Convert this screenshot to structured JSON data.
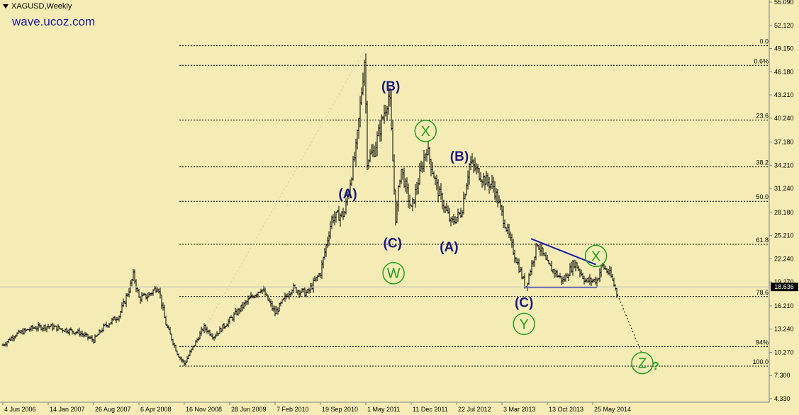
{
  "chart_data": {
    "type": "line",
    "symbol": "XAGUSD,Weekly",
    "watermark": "wave.ucoz.com",
    "x_ticks": [
      "4 Jun 2006",
      "14 Jan 2007",
      "26 Aug 2007",
      "6 Apr 2008",
      "16 Nov 2008",
      "28 Jun 2009",
      "7 Feb 2010",
      "19 Sep 2010",
      "1 May 2011",
      "11 Dec 2011",
      "22 Jul 2012",
      "3 Mar 2013",
      "13 Oct 2013",
      "25 May 2014"
    ],
    "y_ticks": [
      "55.090",
      "52.120",
      "49.150",
      "46.180",
      "43.210",
      "40.240",
      "37.180",
      "34.210",
      "31.240",
      "28.180",
      "25.210",
      "22.240",
      "19.270",
      "16.210",
      "13.240",
      "10.270",
      "7.300",
      "4.330"
    ],
    "ylim": [
      4.33,
      55.09
    ],
    "current_price": "18.636",
    "price_series": [
      [
        "2006-06-04",
        11.2
      ],
      [
        "2006-08-01",
        12.5
      ],
      [
        "2006-11-01",
        13.4
      ],
      [
        "2007-01-14",
        13.6
      ],
      [
        "2007-04-01",
        13.2
      ],
      [
        "2007-06-15",
        12.8
      ],
      [
        "2007-08-26",
        11.8
      ],
      [
        "2007-10-15",
        13.5
      ],
      [
        "2007-12-30",
        15.0
      ],
      [
        "2008-02-20",
        18.5
      ],
      [
        "2008-03-10",
        20.2
      ],
      [
        "2008-04-06",
        17.2
      ],
      [
        "2008-05-20",
        17.5
      ],
      [
        "2008-07-10",
        18.8
      ],
      [
        "2008-08-15",
        14.0
      ],
      [
        "2008-10-15",
        10.0
      ],
      [
        "2008-11-16",
        8.8
      ],
      [
        "2008-12-30",
        11.0
      ],
      [
        "2009-02-20",
        13.5
      ],
      [
        "2009-04-10",
        12.3
      ],
      [
        "2009-06-28",
        14.4
      ],
      [
        "2009-09-15",
        16.6
      ],
      [
        "2009-12-01",
        18.5
      ],
      [
        "2010-02-07",
        15.3
      ],
      [
        "2010-05-01",
        18.5
      ],
      [
        "2010-07-15",
        17.8
      ],
      [
        "2010-09-19",
        20.5
      ],
      [
        "2010-11-15",
        27.5
      ],
      [
        "2011-01-15",
        28.0
      ],
      [
        "2011-03-15",
        36.5
      ],
      [
        "2011-04-25",
        48.0
      ],
      [
        "2011-05-08",
        35.0
      ],
      [
        "2011-06-10",
        36.0
      ],
      [
        "2011-08-25",
        43.5
      ],
      [
        "2011-09-26",
        27.0
      ],
      [
        "2011-10-20",
        34.0
      ],
      [
        "2011-12-11",
        28.5
      ],
      [
        "2012-02-25",
        36.5
      ],
      [
        "2012-04-20",
        31.0
      ],
      [
        "2012-06-25",
        26.8
      ],
      [
        "2012-08-15",
        28.2
      ],
      [
        "2012-09-25",
        34.6
      ],
      [
        "2012-12-01",
        32.5
      ],
      [
        "2013-01-20",
        31.5
      ],
      [
        "2013-03-03",
        28.0
      ],
      [
        "2013-05-01",
        23.0
      ],
      [
        "2013-06-28",
        18.6
      ],
      [
        "2013-08-25",
        24.3
      ],
      [
        "2013-10-13",
        21.5
      ],
      [
        "2013-12-30",
        19.4
      ],
      [
        "2014-02-25",
        21.8
      ],
      [
        "2014-04-20",
        19.4
      ],
      [
        "2014-06-15",
        19.5
      ],
      [
        "2014-07-10",
        21.4
      ],
      [
        "2014-08-20",
        20.2
      ],
      [
        "2014-09-25",
        17.6
      ]
    ],
    "projection": [
      [
        "2014-09-25",
        17.6
      ],
      [
        "2015-01-20",
        10.3
      ]
    ],
    "fibonacci_levels": [
      {
        "label": "0.0",
        "price": 49.5
      },
      {
        "label": "0.6%",
        "price": 47.0
      },
      {
        "label": "23.6",
        "price": 40.0
      },
      {
        "label": "38.2",
        "price": 34.0
      },
      {
        "label": "50.0",
        "price": 29.6
      },
      {
        "label": "61.8",
        "price": 24.1
      },
      {
        "label": "78.6",
        "price": 17.4
      },
      {
        "label": "94%",
        "price": 11.0
      },
      {
        "label": "100.0",
        "price": 8.5
      }
    ],
    "wave_labels": [
      {
        "text": "(A)",
        "date": "2011-02-01",
        "price": 30.6,
        "style": "plain"
      },
      {
        "text": "(B)",
        "date": "2011-09-01",
        "price": 44.4,
        "style": "plain"
      },
      {
        "text": "(C)",
        "date": "2011-09-10",
        "price": 24.3,
        "style": "plain"
      },
      {
        "text": "W",
        "date": "2011-09-15",
        "price": 20.4,
        "style": "circle"
      },
      {
        "text": "X",
        "date": "2012-02-20",
        "price": 38.6,
        "style": "circle"
      },
      {
        "text": "(B)",
        "date": "2012-08-05",
        "price": 35.4,
        "style": "plain"
      },
      {
        "text": "(A)",
        "date": "2012-06-15",
        "price": 23.8,
        "style": "plain"
      },
      {
        "text": "(C)",
        "date": "2013-06-20",
        "price": 16.7,
        "style": "plain"
      },
      {
        "text": "Y",
        "date": "2013-06-20",
        "price": 13.9,
        "style": "circle"
      },
      {
        "text": "X",
        "date": "2014-06-10",
        "price": 22.6,
        "style": "circle"
      },
      {
        "text": "Z",
        "date": "2015-01-25",
        "price": 8.9,
        "style": "circle"
      },
      {
        "text": "?",
        "date": "2015-04-01",
        "price": 8.6,
        "style": "question"
      }
    ],
    "triangle_lines": [
      [
        [
          "2013-07-25",
          24.8
        ],
        [
          "2014-06-10",
          21.5
        ]
      ],
      [
        [
          "2013-06-20",
          18.6
        ],
        [
          "2014-06-15",
          18.6
        ]
      ]
    ],
    "dashed_trend": [
      [
        "2008-11-16",
        8.8
      ],
      [
        "2011-04-25",
        49.0
      ]
    ]
  }
}
